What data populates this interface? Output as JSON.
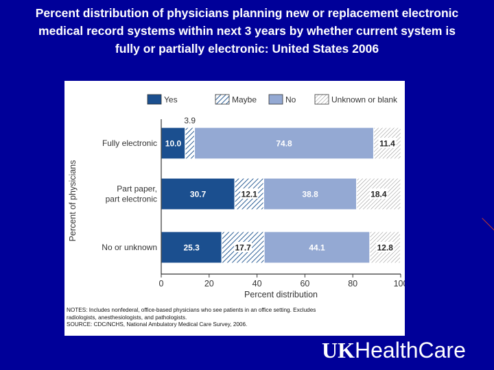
{
  "slide": {
    "title_lines": [
      "Percent distribution of physicians planning new or replacement electronic",
      "medical record systems within next 3 years by whether current system is",
      "fully or partially electronic:  United States 2006"
    ],
    "logo_uk": "UK",
    "logo_rest": "HealthCare",
    "notes_lines": [
      "NOTES: Includes nonfederal, office-based physicians who see patients in an office setting.  Excludes",
      "radiologists, anesthesiologists, and pathologists.",
      "SOURCE: CDC/NCHS, National Ambulatory Medical Care Survey, 2006."
    ]
  },
  "colors": {
    "background": "#000099",
    "yes": "#1b4f8f",
    "maybe_hatch": "#2a5d95",
    "no": "#94a9d3",
    "unknown_hatch": "#8a8a8a"
  },
  "chart_data": {
    "type": "bar",
    "orientation": "horizontal",
    "stacked": true,
    "categories": [
      "Fully electronic",
      "Part paper,\npart electronic",
      "No or unknown"
    ],
    "series": [
      {
        "name": "Yes",
        "values": [
          10.0,
          30.7,
          25.3
        ],
        "labels": [
          "10.0",
          "30.7",
          "25.3"
        ]
      },
      {
        "name": "Maybe",
        "values": [
          3.9,
          12.1,
          17.7
        ],
        "labels": [
          "3.9",
          "12.1",
          "17.7"
        ]
      },
      {
        "name": "No",
        "values": [
          74.8,
          38.8,
          44.1
        ],
        "labels": [
          "74.8",
          "38.8",
          "44.1"
        ]
      },
      {
        "name": "Unknown or blank",
        "values": [
          11.4,
          18.4,
          12.8
        ],
        "labels": [
          "11.4",
          "18.4",
          "12.8"
        ]
      }
    ],
    "xlabel": "Percent distribution",
    "ylabel": "Percent of physicians",
    "xlim": [
      0,
      100
    ],
    "xticks": [
      0,
      20,
      40,
      60,
      80,
      100
    ],
    "legend_position": "top",
    "grid": false
  }
}
